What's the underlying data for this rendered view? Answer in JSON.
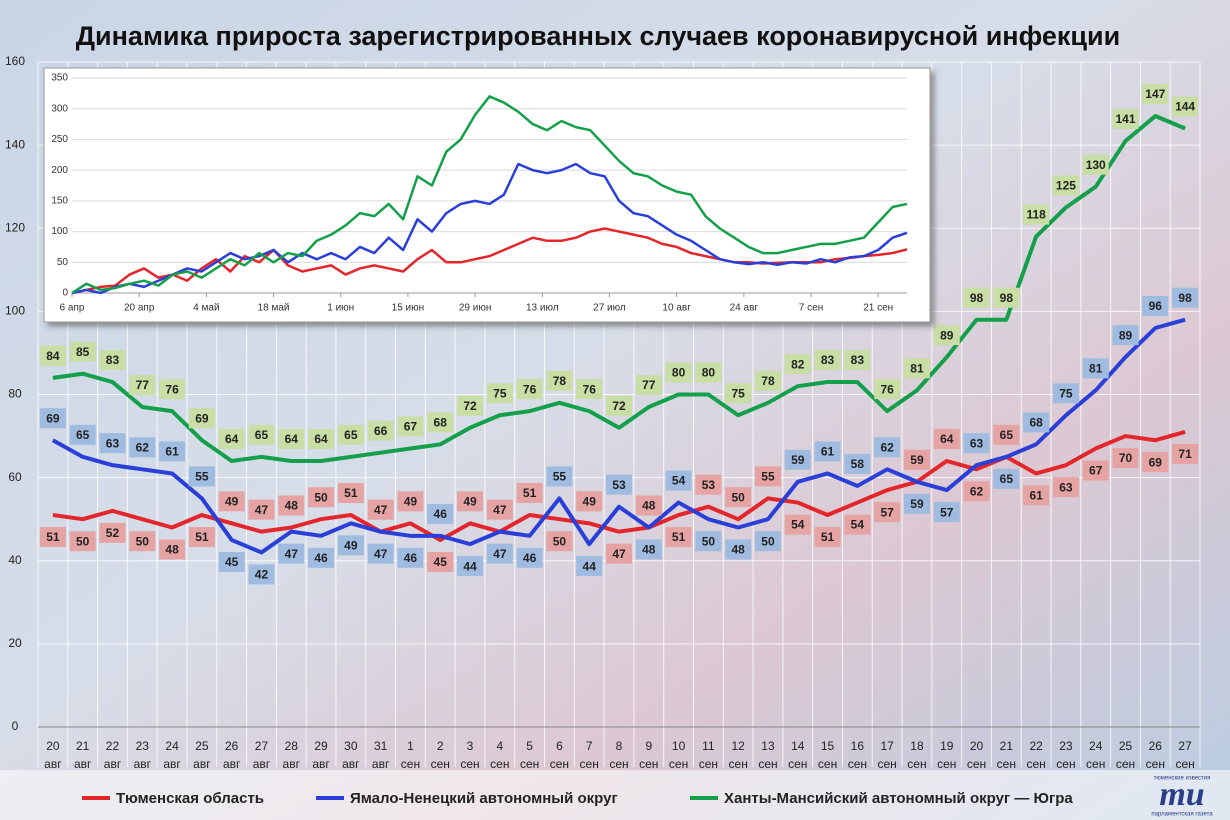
{
  "chart_data": [
    {
      "type": "line",
      "title": "Динамика прироста зарегистрированных случаев коронавирусной инфекции",
      "categories": [
        [
          "20",
          "авг"
        ],
        [
          "21",
          "авг"
        ],
        [
          "22",
          "авг"
        ],
        [
          "23",
          "авг"
        ],
        [
          "24",
          "авг"
        ],
        [
          "25",
          "авг"
        ],
        [
          "26",
          "авг"
        ],
        [
          "27",
          "авг"
        ],
        [
          "28",
          "авг"
        ],
        [
          "29",
          "авг"
        ],
        [
          "30",
          "авг"
        ],
        [
          "31",
          "авг"
        ],
        [
          "1",
          "сен"
        ],
        [
          "2",
          "сен"
        ],
        [
          "3",
          "сен"
        ],
        [
          "4",
          "сен"
        ],
        [
          "5",
          "сен"
        ],
        [
          "6",
          "сен"
        ],
        [
          "7",
          "сен"
        ],
        [
          "8",
          "сен"
        ],
        [
          "9",
          "сен"
        ],
        [
          "10",
          "сен"
        ],
        [
          "11",
          "сен"
        ],
        [
          "12",
          "сен"
        ],
        [
          "13",
          "сен"
        ],
        [
          "14",
          "сен"
        ],
        [
          "15",
          "сен"
        ],
        [
          "16",
          "сен"
        ],
        [
          "17",
          "сен"
        ],
        [
          "18",
          "сен"
        ],
        [
          "19",
          "сен"
        ],
        [
          "20",
          "сен"
        ],
        [
          "21",
          "сен"
        ],
        [
          "22",
          "сен"
        ],
        [
          "23",
          "сен"
        ],
        [
          "24",
          "сен"
        ],
        [
          "25",
          "сен"
        ],
        [
          "26",
          "сен"
        ],
        [
          "27",
          "сен"
        ]
      ],
      "series": [
        {
          "name": "Тюменская область",
          "color": "#e3262b",
          "label_color": "#e6a3a3",
          "values": [
            51,
            50,
            52,
            50,
            48,
            51,
            49,
            47,
            48,
            50,
            51,
            47,
            49,
            45,
            49,
            47,
            51,
            50,
            49,
            47,
            48,
            51,
            53,
            50,
            55,
            54,
            51,
            54,
            57,
            59,
            64,
            62,
            65,
            61,
            63,
            67,
            70,
            69,
            71
          ]
        },
        {
          "name": "Ямало-Ненецкий автономный округ",
          "color": "#2a3fd8",
          "label_color": "#9fbbe0",
          "values": [
            69,
            65,
            63,
            62,
            61,
            55,
            45,
            42,
            47,
            46,
            49,
            47,
            46,
            46,
            44,
            47,
            46,
            55,
            44,
            53,
            48,
            54,
            50,
            48,
            50,
            59,
            61,
            58,
            62,
            59,
            57,
            63,
            65,
            68,
            75,
            81,
            89,
            96,
            98
          ]
        },
        {
          "name": "Ханты-Мансийский автономный округ — Югра",
          "color": "#14a04a",
          "label_color": "#c8dea4",
          "values": [
            84,
            85,
            83,
            77,
            76,
            69,
            64,
            65,
            64,
            64,
            65,
            66,
            67,
            68,
            72,
            75,
            76,
            78,
            76,
            72,
            77,
            80,
            80,
            75,
            78,
            82,
            83,
            83,
            76,
            81,
            89,
            98,
            98,
            118,
            125,
            130,
            141,
            147,
            144
          ]
        }
      ],
      "ylim": [
        0,
        160
      ],
      "yticks": [
        0,
        20,
        40,
        60,
        80,
        100,
        120,
        140,
        160
      ],
      "grid": true
    },
    {
      "type": "line",
      "x": [
        0,
        3,
        6,
        9,
        12,
        15,
        18,
        21,
        24,
        27,
        30,
        33,
        36,
        39,
        42,
        45,
        48,
        51,
        54,
        57,
        60,
        63,
        66,
        69,
        72,
        75,
        78,
        81,
        84,
        87,
        90,
        93,
        96,
        99,
        102,
        105,
        108,
        111,
        114,
        117,
        120,
        123,
        126,
        129,
        132,
        135,
        138,
        141,
        144,
        147,
        150,
        153,
        156,
        159,
        162,
        165,
        168,
        171,
        174
      ],
      "series": [
        {
          "color": "#e3262b",
          "values": [
            0,
            5,
            10,
            12,
            30,
            40,
            25,
            30,
            20,
            40,
            55,
            35,
            60,
            50,
            70,
            45,
            35,
            40,
            45,
            30,
            40,
            45,
            40,
            35,
            55,
            70,
            50,
            50,
            55,
            60,
            70,
            80,
            90,
            85,
            85,
            90,
            100,
            105,
            100,
            95,
            90,
            80,
            75,
            65,
            60,
            55,
            50,
            50,
            48,
            49,
            50,
            50,
            50,
            55,
            57,
            60,
            62,
            65,
            71
          ]
        },
        {
          "color": "#2a3fd8",
          "values": [
            0,
            5,
            0,
            10,
            15,
            10,
            20,
            30,
            40,
            35,
            50,
            65,
            55,
            60,
            70,
            50,
            65,
            55,
            65,
            55,
            75,
            65,
            90,
            70,
            120,
            100,
            130,
            145,
            150,
            145,
            160,
            210,
            200,
            195,
            200,
            210,
            195,
            190,
            150,
            130,
            125,
            110,
            95,
            85,
            70,
            55,
            50,
            47,
            50,
            46,
            50,
            48,
            55,
            50,
            58,
            60,
            70,
            90,
            98
          ]
        },
        {
          "color": "#14a04a",
          "values": [
            0,
            15,
            5,
            8,
            15,
            20,
            12,
            30,
            35,
            25,
            40,
            55,
            45,
            65,
            50,
            65,
            60,
            85,
            95,
            110,
            130,
            125,
            145,
            120,
            190,
            175,
            230,
            250,
            290,
            320,
            310,
            295,
            275,
            265,
            280,
            270,
            265,
            240,
            215,
            195,
            190,
            175,
            165,
            160,
            125,
            105,
            90,
            75,
            65,
            65,
            70,
            75,
            80,
            80,
            85,
            90,
            115,
            140,
            145
          ]
        }
      ],
      "xlim": [
        0,
        174
      ],
      "xticks": [
        {
          "value": 0,
          "label": "6 апр"
        },
        {
          "value": 14,
          "label": "20 апр"
        },
        {
          "value": 28,
          "label": "4 май"
        },
        {
          "value": 42,
          "label": "18 май"
        },
        {
          "value": 56,
          "label": "1 июн"
        },
        {
          "value": 70,
          "label": "15 июн"
        },
        {
          "value": 84,
          "label": "29 июн"
        },
        {
          "value": 98,
          "label": "13 июл"
        },
        {
          "value": 112,
          "label": "27 июл"
        },
        {
          "value": 126,
          "label": "10 авг"
        },
        {
          "value": 140,
          "label": "24 авг"
        },
        {
          "value": 154,
          "label": "7 сен"
        },
        {
          "value": 168,
          "label": "21 сен"
        }
      ],
      "ylim": [
        0,
        350
      ],
      "yticks": [
        0,
        50,
        100,
        150,
        200,
        250,
        300,
        350
      ],
      "grid": true
    }
  ],
  "logo": {
    "mark": "mu",
    "top": "тюменские известия",
    "bottom": "парламентская газета"
  }
}
